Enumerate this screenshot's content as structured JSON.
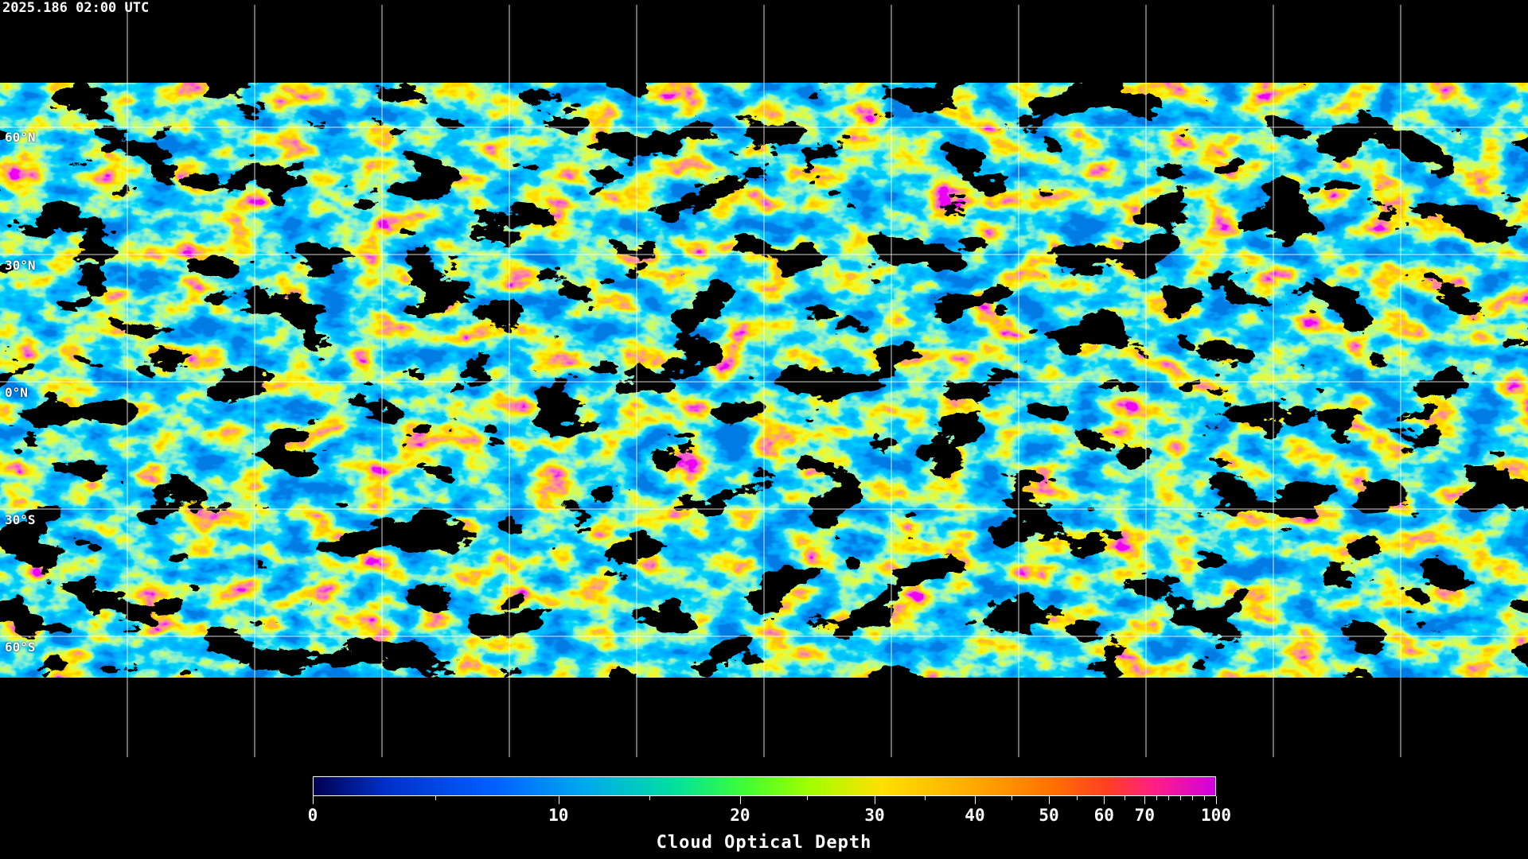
{
  "timestamp": "2025.186 02:00 UTC",
  "lat_labels": [
    "60°N",
    "30°N",
    "0°N",
    "30°S",
    "60°S"
  ],
  "colorbar": {
    "title": "Cloud Optical Depth",
    "range": [
      0,
      100
    ],
    "tick_labels": [
      "0",
      "10",
      "20",
      "30",
      "40",
      "50",
      "60",
      "70",
      "100"
    ],
    "colors": [
      "#000050",
      "#0030c8",
      "#0060ff",
      "#00a8f0",
      "#00e0a0",
      "#40ff30",
      "#a0ff00",
      "#ffe000",
      "#ffb000",
      "#ff7000",
      "#ff4020",
      "#ff2080",
      "#d000e0"
    ]
  },
  "map": {
    "projection": "equirectangular",
    "gridlines": "30-degree",
    "grid_color": "#ffffff",
    "background": "#000000"
  }
}
